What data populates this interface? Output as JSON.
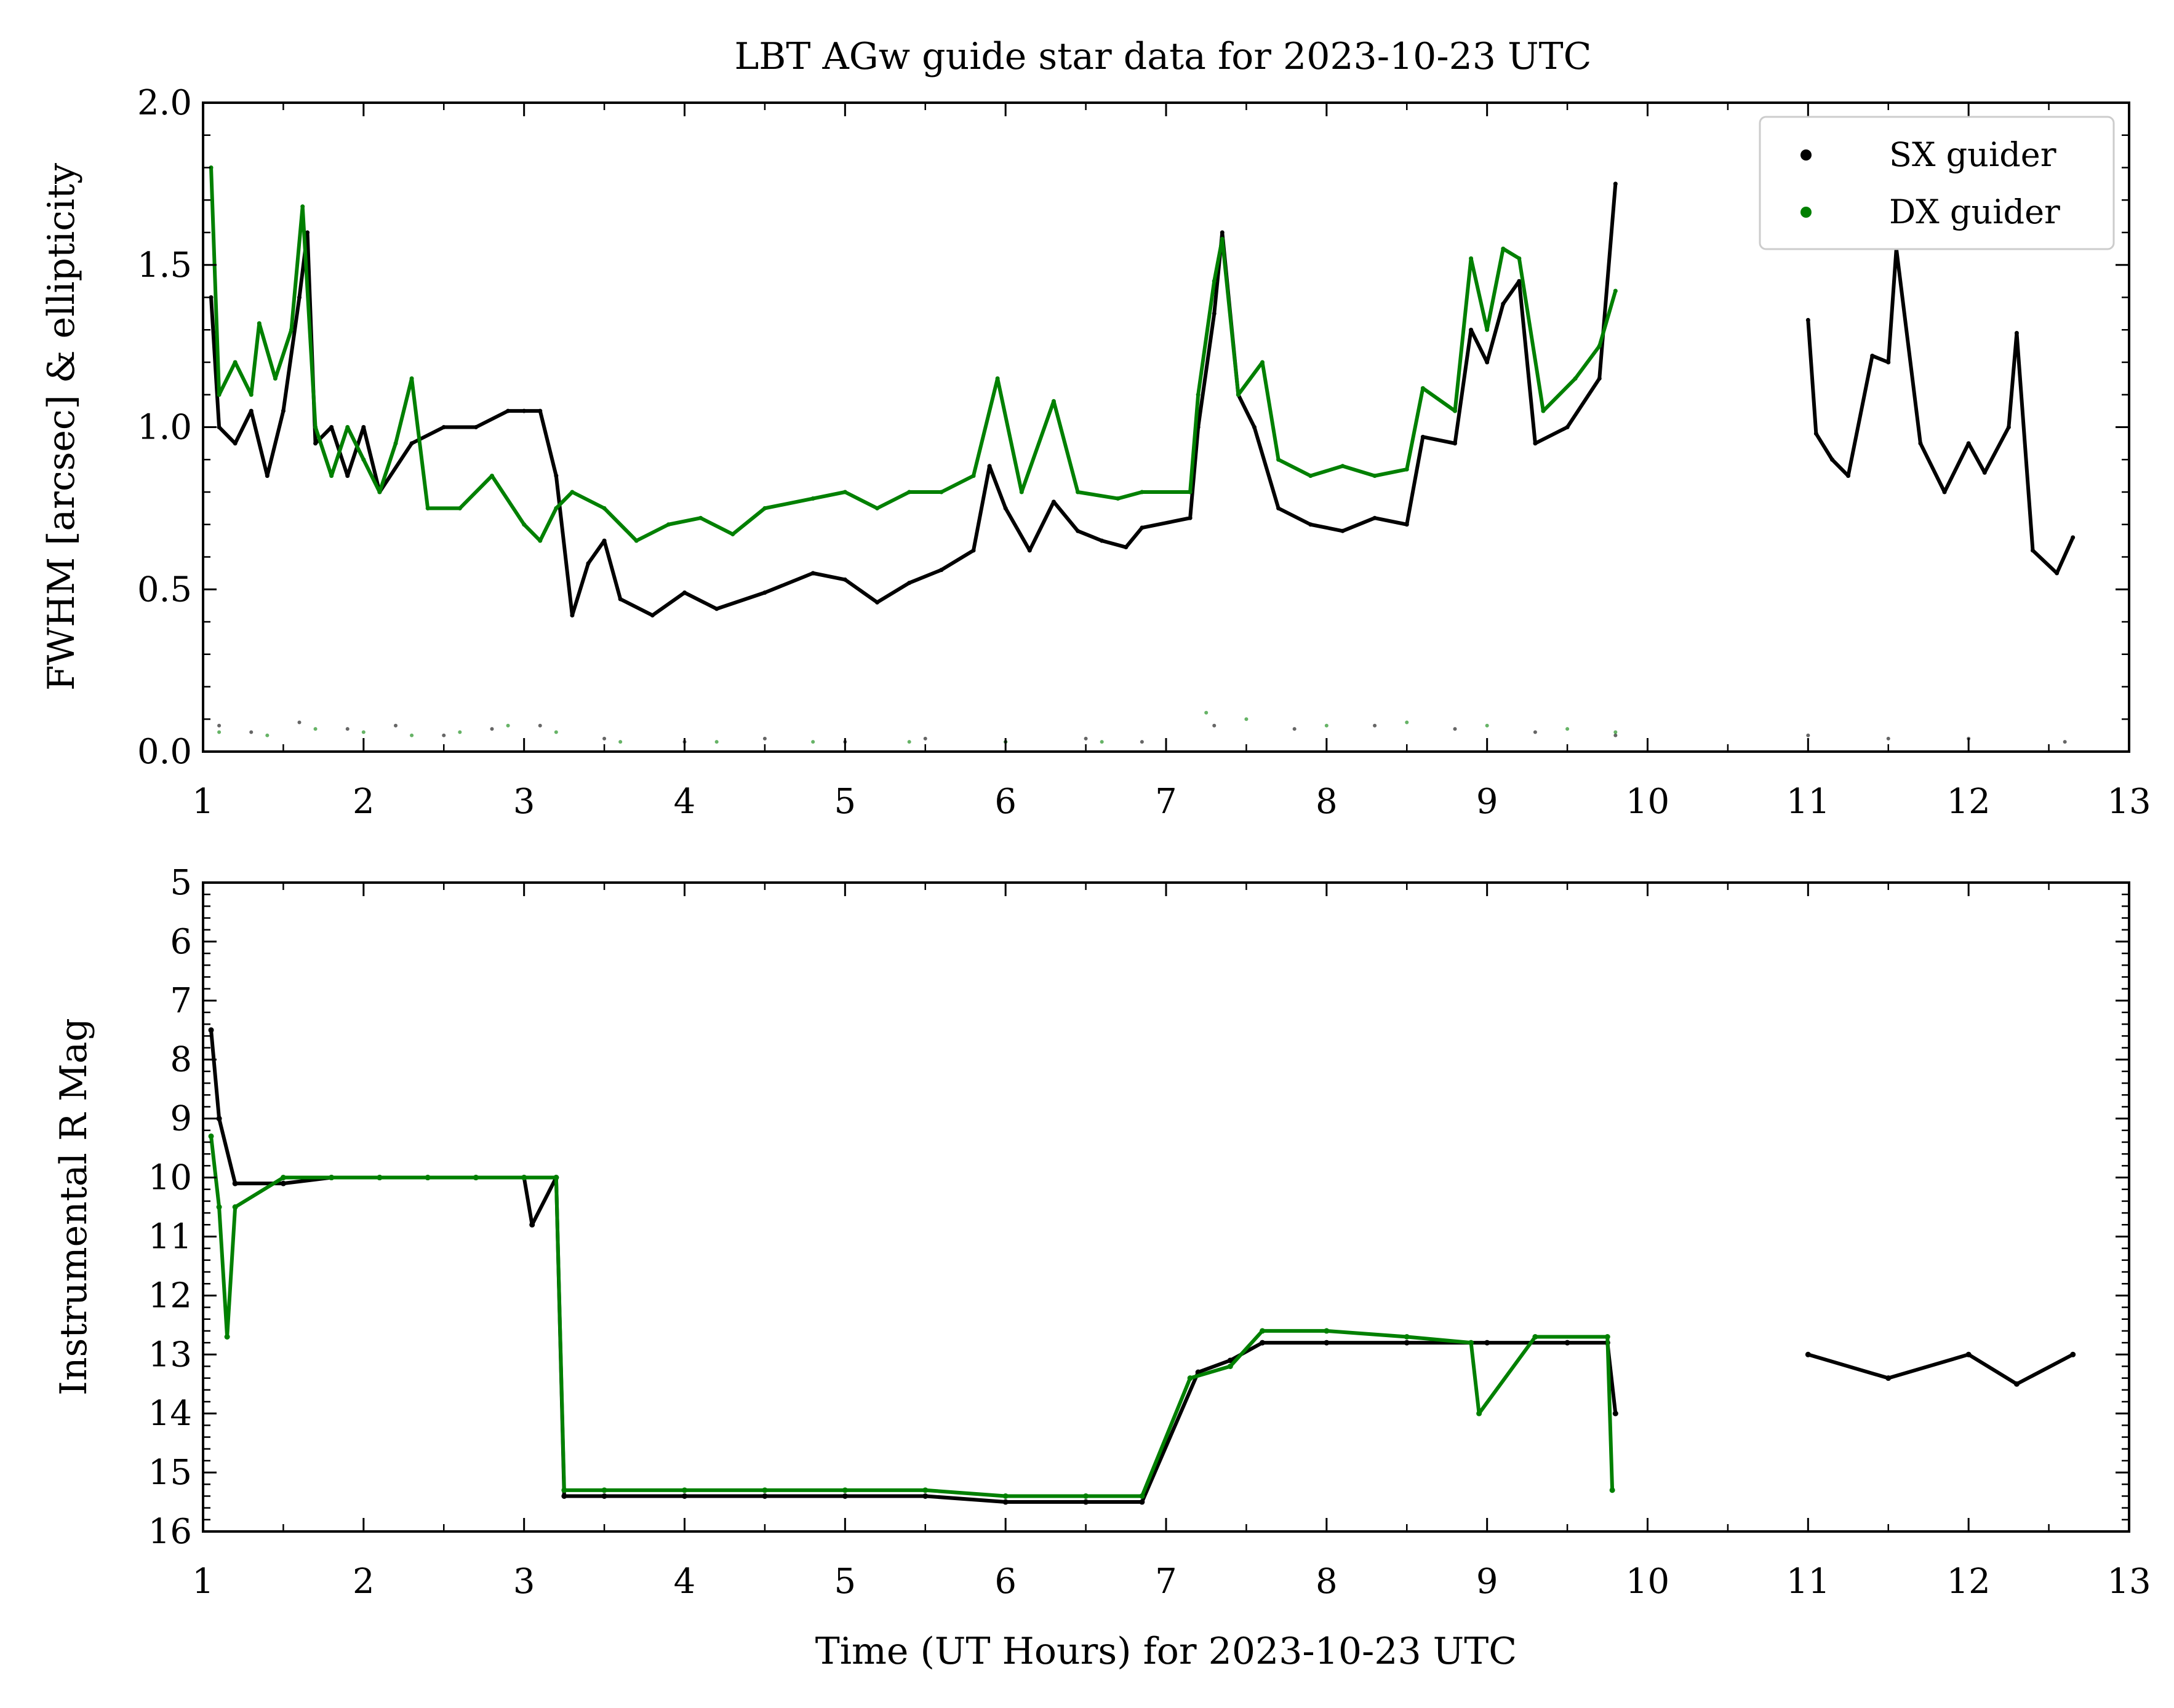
{
  "chart_data": [
    {
      "type": "scatter",
      "title": "LBT AGw guide star data for 2023-10-23 UTC",
      "ylabel": "FWHM [arcsec] & ellipticity",
      "xlim": [
        1,
        13
      ],
      "ylim": [
        0.0,
        2.0
      ],
      "x_ticks": [
        "1",
        "2",
        "3",
        "4",
        "5",
        "6",
        "7",
        "8",
        "9",
        "10",
        "11",
        "12",
        "13"
      ],
      "y_ticks": [
        "0.0",
        "0.5",
        "1.0",
        "1.5",
        "2.0"
      ],
      "legend": {
        "placement": "top-right",
        "entries": [
          "SX guider",
          "DX guider"
        ]
      },
      "series": [
        {
          "name": "SX guider",
          "color": "#000000",
          "fwhm_points": [
            [
              1.05,
              1.4
            ],
            [
              1.1,
              1.0
            ],
            [
              1.2,
              0.95
            ],
            [
              1.3,
              1.05
            ],
            [
              1.4,
              0.85
            ],
            [
              1.5,
              1.05
            ],
            [
              1.6,
              1.4
            ],
            [
              1.65,
              1.6
            ],
            [
              1.7,
              0.95
            ],
            [
              1.8,
              1.0
            ],
            [
              1.9,
              0.85
            ],
            [
              2.0,
              1.0
            ],
            [
              2.1,
              0.8
            ],
            [
              2.3,
              0.95
            ],
            [
              2.5,
              1.0
            ],
            [
              2.7,
              1.0
            ],
            [
              2.9,
              1.05
            ],
            [
              3.0,
              1.05
            ],
            [
              3.1,
              1.05
            ],
            [
              3.2,
              0.85
            ],
            [
              3.3,
              0.42
            ],
            [
              3.4,
              0.58
            ],
            [
              3.5,
              0.65
            ],
            [
              3.6,
              0.47
            ],
            [
              3.8,
              0.42
            ],
            [
              4.0,
              0.49
            ],
            [
              4.2,
              0.44
            ],
            [
              4.5,
              0.49
            ],
            [
              4.8,
              0.55
            ],
            [
              5.0,
              0.53
            ],
            [
              5.2,
              0.46
            ],
            [
              5.4,
              0.52
            ],
            [
              5.6,
              0.56
            ],
            [
              5.8,
              0.62
            ],
            [
              5.9,
              0.88
            ],
            [
              6.0,
              0.75
            ],
            [
              6.15,
              0.62
            ],
            [
              6.3,
              0.77
            ],
            [
              6.45,
              0.68
            ],
            [
              6.6,
              0.65
            ],
            [
              6.75,
              0.63
            ],
            [
              6.85,
              0.69
            ],
            [
              7.15,
              0.72
            ],
            [
              7.2,
              1.0
            ],
            [
              7.3,
              1.35
            ],
            [
              7.35,
              1.6
            ],
            [
              7.45,
              1.1
            ],
            [
              7.55,
              1.0
            ],
            [
              7.7,
              0.75
            ],
            [
              7.9,
              0.7
            ],
            [
              8.1,
              0.68
            ],
            [
              8.3,
              0.72
            ],
            [
              8.5,
              0.7
            ],
            [
              8.6,
              0.97
            ],
            [
              8.8,
              0.95
            ],
            [
              8.9,
              1.3
            ],
            [
              9.0,
              1.2
            ],
            [
              9.1,
              1.38
            ],
            [
              9.2,
              1.45
            ],
            [
              9.3,
              0.95
            ],
            [
              9.5,
              1.0
            ],
            [
              9.7,
              1.15
            ],
            [
              9.8,
              1.75
            ],
            [
              11.0,
              1.33
            ],
            [
              11.05,
              0.98
            ],
            [
              11.15,
              0.9
            ],
            [
              11.25,
              0.85
            ],
            [
              11.4,
              1.22
            ],
            [
              11.5,
              1.2
            ],
            [
              11.55,
              1.55
            ],
            [
              11.7,
              0.95
            ],
            [
              11.85,
              0.8
            ],
            [
              12.0,
              0.95
            ],
            [
              12.1,
              0.86
            ],
            [
              12.25,
              1.0
            ],
            [
              12.3,
              1.29
            ],
            [
              12.4,
              0.62
            ],
            [
              12.55,
              0.55
            ],
            [
              12.65,
              0.66
            ]
          ],
          "ellipticity_points": [
            [
              1.1,
              0.08
            ],
            [
              1.3,
              0.06
            ],
            [
              1.6,
              0.09
            ],
            [
              1.9,
              0.07
            ],
            [
              2.2,
              0.08
            ],
            [
              2.5,
              0.05
            ],
            [
              2.8,
              0.07
            ],
            [
              3.1,
              0.08
            ],
            [
              3.5,
              0.04
            ],
            [
              4.0,
              0.03
            ],
            [
              4.5,
              0.04
            ],
            [
              5.0,
              0.03
            ],
            [
              5.5,
              0.04
            ],
            [
              6.0,
              0.03
            ],
            [
              6.5,
              0.04
            ],
            [
              6.85,
              0.03
            ],
            [
              7.3,
              0.08
            ],
            [
              7.8,
              0.07
            ],
            [
              8.3,
              0.08
            ],
            [
              8.8,
              0.07
            ],
            [
              9.3,
              0.06
            ],
            [
              9.8,
              0.05
            ],
            [
              11.0,
              0.05
            ],
            [
              11.5,
              0.04
            ],
            [
              12.0,
              0.04
            ],
            [
              12.6,
              0.03
            ]
          ],
          "mag_points": [
            [
              1.05,
              7.5
            ],
            [
              1.1,
              9.0
            ],
            [
              1.2,
              10.1
            ],
            [
              1.5,
              10.1
            ],
            [
              1.8,
              10.0
            ],
            [
              2.1,
              10.0
            ],
            [
              2.4,
              10.0
            ],
            [
              2.7,
              10.0
            ],
            [
              3.0,
              10.0
            ],
            [
              3.05,
              10.8
            ],
            [
              3.2,
              10.0
            ],
            [
              3.25,
              15.4
            ],
            [
              3.5,
              15.4
            ],
            [
              4.0,
              15.4
            ],
            [
              4.5,
              15.4
            ],
            [
              5.0,
              15.4
            ],
            [
              5.5,
              15.4
            ],
            [
              6.0,
              15.5
            ],
            [
              6.5,
              15.5
            ],
            [
              6.85,
              15.5
            ],
            [
              7.2,
              13.3
            ],
            [
              7.4,
              13.1
            ],
            [
              7.6,
              12.8
            ],
            [
              8.0,
              12.8
            ],
            [
              8.5,
              12.8
            ],
            [
              9.0,
              12.8
            ],
            [
              9.5,
              12.8
            ],
            [
              9.75,
              12.8
            ],
            [
              9.8,
              14.0
            ],
            [
              11.0,
              13.0
            ],
            [
              11.5,
              13.4
            ],
            [
              12.0,
              13.0
            ],
            [
              12.3,
              13.5
            ],
            [
              12.65,
              13.0
            ]
          ]
        },
        {
          "name": "DX guider",
          "color": "#008000",
          "fwhm_points": [
            [
              1.05,
              1.8
            ],
            [
              1.1,
              1.1
            ],
            [
              1.2,
              1.2
            ],
            [
              1.3,
              1.1
            ],
            [
              1.35,
              1.32
            ],
            [
              1.45,
              1.15
            ],
            [
              1.55,
              1.3
            ],
            [
              1.62,
              1.68
            ],
            [
              1.7,
              1.0
            ],
            [
              1.8,
              0.85
            ],
            [
              1.9,
              1.0
            ],
            [
              2.0,
              0.9
            ],
            [
              2.1,
              0.8
            ],
            [
              2.2,
              0.95
            ],
            [
              2.3,
              1.15
            ],
            [
              2.4,
              0.75
            ],
            [
              2.6,
              0.75
            ],
            [
              2.8,
              0.85
            ],
            [
              3.0,
              0.7
            ],
            [
              3.1,
              0.65
            ],
            [
              3.2,
              0.75
            ],
            [
              3.3,
              0.8
            ],
            [
              3.5,
              0.75
            ],
            [
              3.7,
              0.65
            ],
            [
              3.9,
              0.7
            ],
            [
              4.1,
              0.72
            ],
            [
              4.3,
              0.67
            ],
            [
              4.5,
              0.75
            ],
            [
              4.8,
              0.78
            ],
            [
              5.0,
              0.8
            ],
            [
              5.2,
              0.75
            ],
            [
              5.4,
              0.8
            ],
            [
              5.6,
              0.8
            ],
            [
              5.8,
              0.85
            ],
            [
              5.95,
              1.15
            ],
            [
              6.1,
              0.8
            ],
            [
              6.3,
              1.08
            ],
            [
              6.45,
              0.8
            ],
            [
              6.7,
              0.78
            ],
            [
              6.85,
              0.8
            ],
            [
              7.15,
              0.8
            ],
            [
              7.2,
              1.1
            ],
            [
              7.3,
              1.45
            ],
            [
              7.35,
              1.58
            ],
            [
              7.45,
              1.1
            ],
            [
              7.6,
              1.2
            ],
            [
              7.7,
              0.9
            ],
            [
              7.9,
              0.85
            ],
            [
              8.1,
              0.88
            ],
            [
              8.3,
              0.85
            ],
            [
              8.5,
              0.87
            ],
            [
              8.6,
              1.12
            ],
            [
              8.8,
              1.05
            ],
            [
              8.9,
              1.52
            ],
            [
              9.0,
              1.3
            ],
            [
              9.1,
              1.55
            ],
            [
              9.2,
              1.52
            ],
            [
              9.35,
              1.05
            ],
            [
              9.55,
              1.15
            ],
            [
              9.7,
              1.25
            ],
            [
              9.8,
              1.42
            ]
          ],
          "ellipticity_points": [
            [
              1.1,
              0.06
            ],
            [
              1.4,
              0.05
            ],
            [
              1.7,
              0.07
            ],
            [
              2.0,
              0.06
            ],
            [
              2.3,
              0.05
            ],
            [
              2.6,
              0.06
            ],
            [
              2.9,
              0.08
            ],
            [
              3.2,
              0.06
            ],
            [
              3.6,
              0.03
            ],
            [
              4.2,
              0.03
            ],
            [
              4.8,
              0.03
            ],
            [
              5.4,
              0.03
            ],
            [
              6.0,
              0.03
            ],
            [
              6.6,
              0.03
            ],
            [
              7.25,
              0.12
            ],
            [
              7.5,
              0.1
            ],
            [
              8.0,
              0.08
            ],
            [
              8.5,
              0.09
            ],
            [
              9.0,
              0.08
            ],
            [
              9.5,
              0.07
            ],
            [
              9.8,
              0.06
            ]
          ],
          "mag_points": [
            [
              1.05,
              9.3
            ],
            [
              1.1,
              10.5
            ],
            [
              1.15,
              12.7
            ],
            [
              1.2,
              10.5
            ],
            [
              1.5,
              10.0
            ],
            [
              1.8,
              10.0
            ],
            [
              2.1,
              10.0
            ],
            [
              2.4,
              10.0
            ],
            [
              2.7,
              10.0
            ],
            [
              3.0,
              10.0
            ],
            [
              3.2,
              10.0
            ],
            [
              3.25,
              15.3
            ],
            [
              3.5,
              15.3
            ],
            [
              4.0,
              15.3
            ],
            [
              4.5,
              15.3
            ],
            [
              5.0,
              15.3
            ],
            [
              5.5,
              15.3
            ],
            [
              6.0,
              15.4
            ],
            [
              6.5,
              15.4
            ],
            [
              6.85,
              15.4
            ],
            [
              7.15,
              13.4
            ],
            [
              7.4,
              13.2
            ],
            [
              7.6,
              12.6
            ],
            [
              8.0,
              12.6
            ],
            [
              8.5,
              12.7
            ],
            [
              8.9,
              12.8
            ],
            [
              8.95,
              14.0
            ],
            [
              9.3,
              12.7
            ],
            [
              9.75,
              12.7
            ],
            [
              9.78,
              15.3
            ]
          ]
        }
      ]
    },
    {
      "type": "scatter",
      "ylabel": "Instrumental R Mag",
      "xlabel": "Time (UT Hours) for 2023-10-23 UTC",
      "xlim": [
        1,
        13
      ],
      "ylim": [
        16,
        5
      ],
      "y_inverted": true,
      "x_ticks": [
        "1",
        "2",
        "3",
        "4",
        "5",
        "6",
        "7",
        "8",
        "9",
        "10",
        "11",
        "12",
        "13"
      ],
      "y_ticks": [
        "5",
        "6",
        "7",
        "8",
        "9",
        "10",
        "11",
        "12",
        "13",
        "14",
        "15",
        "16"
      ]
    }
  ]
}
